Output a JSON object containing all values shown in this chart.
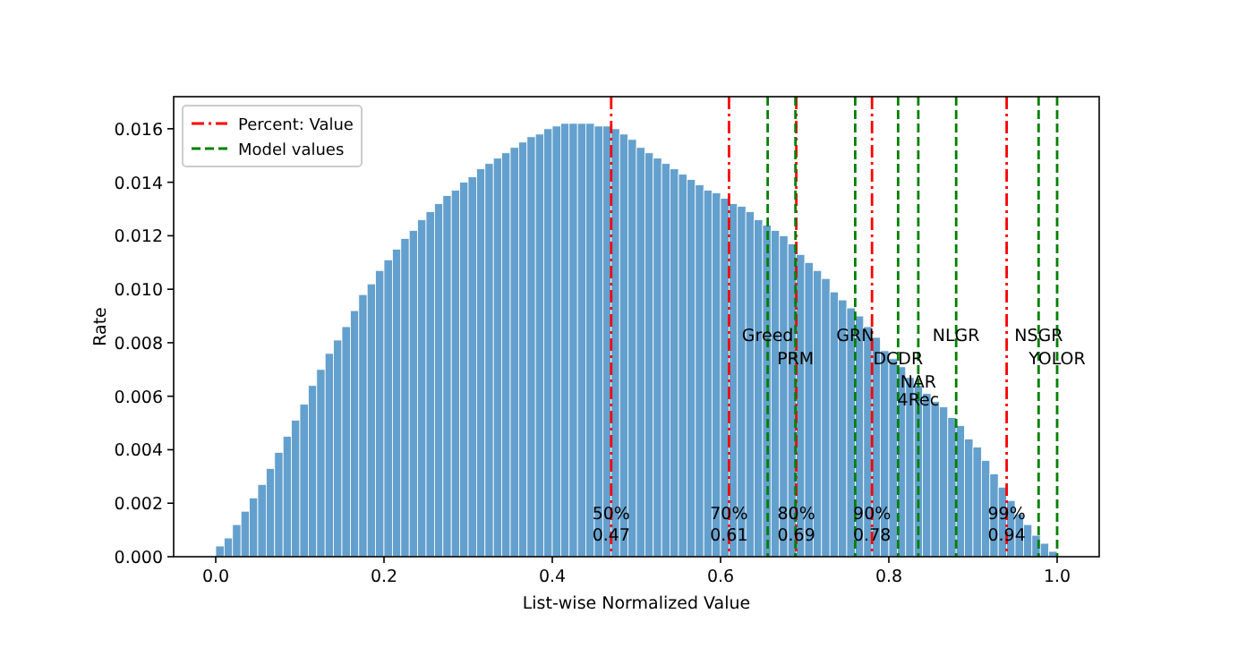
{
  "chart_data": {
    "type": "histogram",
    "xlabel": "List-wise Normalized Value",
    "ylabel": "Rate",
    "color": "#64a0cd",
    "bins": [
      0,
      0.01,
      0.02,
      0.03,
      0.04,
      0.05,
      0.06,
      0.07,
      0.08,
      0.09,
      0.1,
      0.11,
      0.12,
      0.13,
      0.14,
      0.15,
      0.16,
      0.17,
      0.18,
      0.19,
      0.2,
      0.21,
      0.22,
      0.23,
      0.24,
      0.25,
      0.26,
      0.27,
      0.28,
      0.29,
      0.3,
      0.31,
      0.32,
      0.33,
      0.34,
      0.35,
      0.36,
      0.37,
      0.38,
      0.39,
      0.4,
      0.41,
      0.42,
      0.43,
      0.44,
      0.45,
      0.46,
      0.47,
      0.48,
      0.49,
      0.5,
      0.51,
      0.52,
      0.53,
      0.54,
      0.55,
      0.56,
      0.57,
      0.58,
      0.59,
      0.6,
      0.61,
      0.62,
      0.63,
      0.64,
      0.65,
      0.66,
      0.67,
      0.68,
      0.69,
      0.7,
      0.71,
      0.72,
      0.73,
      0.74,
      0.75,
      0.76,
      0.77,
      0.78,
      0.79,
      0.8,
      0.81,
      0.82,
      0.83,
      0.84,
      0.85,
      0.86,
      0.87,
      0.88,
      0.89,
      0.9,
      0.91,
      0.92,
      0.93,
      0.94,
      0.95,
      0.96,
      0.97,
      0.98,
      0.99,
      1
    ],
    "values": [
      0.0004,
      0.0007,
      0.0012,
      0.0017,
      0.0022,
      0.0027,
      0.0033,
      0.0039,
      0.0045,
      0.0051,
      0.0057,
      0.0064,
      0.007,
      0.0076,
      0.0081,
      0.0086,
      0.0092,
      0.0098,
      0.0102,
      0.0107,
      0.0111,
      0.0115,
      0.0119,
      0.0122,
      0.0126,
      0.0129,
      0.0132,
      0.0135,
      0.0137,
      0.014,
      0.0142,
      0.0145,
      0.0147,
      0.0149,
      0.0151,
      0.0153,
      0.0155,
      0.0157,
      0.0158,
      0.016,
      0.0161,
      0.0162,
      0.0162,
      0.0162,
      0.0162,
      0.0161,
      0.0161,
      0.016,
      0.0158,
      0.0156,
      0.0153,
      0.0151,
      0.0149,
      0.0147,
      0.0145,
      0.0143,
      0.0141,
      0.0139,
      0.0137,
      0.0136,
      0.0134,
      0.0132,
      0.0131,
      0.0129,
      0.0126,
      0.0124,
      0.0122,
      0.012,
      0.0117,
      0.0113,
      0.011,
      0.0107,
      0.0104,
      0.0099,
      0.0096,
      0.0093,
      0.009,
      0.0086,
      0.0082,
      0.0077,
      0.0074,
      0.0071,
      0.0067,
      0.0064,
      0.0061,
      0.0058,
      0.0056,
      0.0052,
      0.0049,
      0.0044,
      0.0041,
      0.0036,
      0.0031,
      0.0026,
      0.0021,
      0.0016,
      0.0012,
      0.0008,
      0.0005,
      0.0002
    ],
    "xlim": [
      -0.05,
      1.05
    ],
    "xticks": [
      {
        "value": 0,
        "label": "0.0"
      },
      {
        "value": 0.2,
        "label": "0.2"
      },
      {
        "value": 0.4,
        "label": "0.4"
      },
      {
        "value": 0.6,
        "label": "0.6"
      },
      {
        "value": 0.8,
        "label": "0.8"
      },
      {
        "value": 1,
        "label": "1.0"
      }
    ],
    "ylim": [
      0,
      0.0172
    ],
    "yticks": [
      {
        "value": 0,
        "label": "0.000"
      },
      {
        "value": 0.002,
        "label": "0.002"
      },
      {
        "value": 0.004,
        "label": "0.004"
      },
      {
        "value": 0.006,
        "label": "0.006"
      },
      {
        "value": 0.008,
        "label": "0.008"
      },
      {
        "value": 0.01,
        "label": "0.010"
      },
      {
        "value": 0.012,
        "label": "0.012"
      },
      {
        "value": 0.014,
        "label": "0.014"
      },
      {
        "value": 0.016,
        "label": "0.016"
      }
    ],
    "ref_lines": [
      {
        "axis": "x",
        "value": 0.47,
        "label": "50% 0.47",
        "color": "#ff0000",
        "line_style": "dashdot"
      },
      {
        "axis": "x",
        "value": 0.61,
        "label": "70% 0.61",
        "color": "#ff0000",
        "line_style": "dashdot"
      },
      {
        "axis": "x",
        "value": 0.69,
        "label": "80% 0.69",
        "color": "#ff0000",
        "line_style": "dashdot"
      },
      {
        "axis": "x",
        "value": 0.78,
        "label": "90% 0.78",
        "color": "#ff0000",
        "line_style": "dashdot"
      },
      {
        "axis": "x",
        "value": 0.94,
        "label": "99% 0.94",
        "color": "#ff0000",
        "line_style": "dashdot"
      },
      {
        "axis": "x",
        "value": 0.656,
        "label": "Greed",
        "color": "#008000",
        "line_style": "dashed"
      },
      {
        "axis": "x",
        "value": 0.689,
        "label": "PRM",
        "color": "#008000",
        "line_style": "dashed"
      },
      {
        "axis": "x",
        "value": 0.76,
        "label": "GRN",
        "color": "#008000",
        "line_style": "dashed"
      },
      {
        "axis": "x",
        "value": 0.811,
        "label": "DCDR",
        "color": "#008000",
        "line_style": "dashed"
      },
      {
        "axis": "x",
        "value": 0.835,
        "label": "NAR 4Rec",
        "color": "#008000",
        "line_style": "dashed"
      },
      {
        "axis": "x",
        "value": 0.88,
        "label": "NLGR",
        "color": "#008000",
        "line_style": "dashed"
      },
      {
        "axis": "x",
        "value": 0.978,
        "label": "NSGR",
        "color": "#008000",
        "line_style": "dashed"
      },
      {
        "axis": "x",
        "value": 1.0,
        "label": "YOLOR",
        "color": "#008000",
        "line_style": "dashed"
      }
    ],
    "annotations": [
      "Percent: Value",
      "Model values"
    ],
    "grid": false
  }
}
